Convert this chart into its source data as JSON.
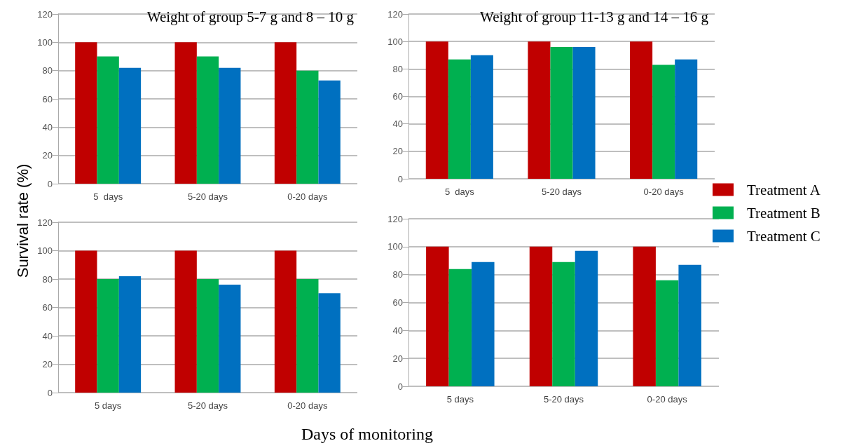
{
  "chart_data": [
    {
      "type": "bar",
      "title": "Weight of group 5-7 g and 8 – 10 g",
      "ylabel": "Survival rate (%)",
      "categories": [
        "5  days",
        "5-20 days",
        "0-20 days"
      ],
      "series": [
        {
          "color": "#c00000",
          "values": [
            100,
            100,
            100
          ]
        },
        {
          "color": "#00b050",
          "values": [
            90,
            90,
            80
          ]
        },
        {
          "color": "#0070c0",
          "values": [
            82,
            82,
            73
          ]
        }
      ],
      "ylim": [
        0,
        120
      ],
      "yticks": [
        0,
        20,
        40,
        60,
        80,
        100,
        120
      ],
      "grid": "y"
    },
    {
      "type": "bar",
      "title": "Weight of group 11-13 g and 14 – 16 g",
      "categories": [
        "5  days",
        "5-20 days",
        "0-20 days"
      ],
      "series": [
        {
          "name": "Treatment A",
          "color": "#c00000",
          "values": [
            100,
            100,
            100
          ]
        },
        {
          "name": "Treatment B",
          "color": "#00b050",
          "values": [
            87,
            96,
            83
          ]
        },
        {
          "name": "Treatment C",
          "color": "#0070c0",
          "values": [
            90,
            96,
            87
          ]
        }
      ],
      "ylim": [
        0,
        120
      ],
      "yticks": [
        0,
        20,
        40,
        60,
        80,
        100,
        120
      ],
      "grid": "y",
      "legend": "right"
    },
    {
      "type": "bar",
      "xlabel": "Days of monitoring",
      "categories": [
        "5 days",
        "5-20 days",
        "0-20 days"
      ],
      "series": [
        {
          "color": "#c00000",
          "values": [
            100,
            100,
            100
          ]
        },
        {
          "color": "#00b050",
          "values": [
            80,
            80,
            80
          ]
        },
        {
          "color": "#0070c0",
          "values": [
            82,
            76,
            70
          ]
        }
      ],
      "ylim": [
        0,
        120
      ],
      "yticks": [
        0,
        20,
        40,
        60,
        80,
        100,
        120
      ],
      "grid": "y"
    },
    {
      "type": "bar",
      "categories": [
        "5 days",
        "5-20 days",
        "0-20 days"
      ],
      "series": [
        {
          "color": "#c00000",
          "values": [
            100,
            100,
            100
          ]
        },
        {
          "color": "#00b050",
          "values": [
            84,
            89,
            76
          ]
        },
        {
          "color": "#0070c0",
          "values": [
            89,
            97,
            87
          ]
        }
      ],
      "ylim": [
        0,
        120
      ],
      "yticks": [
        0,
        20,
        40,
        60,
        80,
        100,
        120
      ],
      "grid": "y"
    }
  ]
}
